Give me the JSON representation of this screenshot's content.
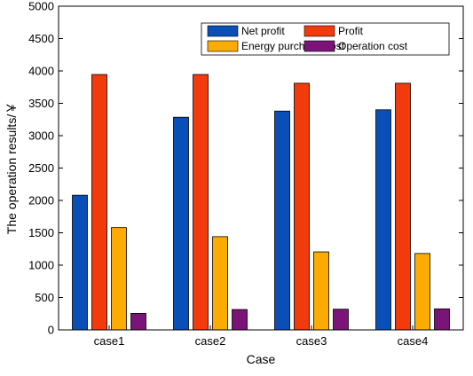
{
  "chart_data": {
    "type": "bar",
    "title": "",
    "xlabel": "Case",
    "ylabel": "The operation results/￥",
    "categories": [
      "case1",
      "case2",
      "case3",
      "case4"
    ],
    "ylim": [
      0,
      5000
    ],
    "yticks": [
      0,
      500,
      1000,
      1500,
      2000,
      2500,
      3000,
      3500,
      4000,
      4500,
      5000
    ],
    "grid": false,
    "legend_position": "top-right",
    "series": [
      {
        "name": "Net profit",
        "color": "#0a4fb8",
        "values": [
          2080,
          3285,
          3380,
          3400
        ]
      },
      {
        "name": "Profit",
        "color": "#f23a0d",
        "values": [
          3945,
          3945,
          3810,
          3810
        ]
      },
      {
        "name": "Energy purchase cost",
        "color": "#fcac00",
        "values": [
          1580,
          1440,
          1205,
          1180
        ]
      },
      {
        "name": "Operation cost",
        "color": "#7a1478",
        "values": [
          255,
          315,
          320,
          325
        ]
      }
    ]
  }
}
